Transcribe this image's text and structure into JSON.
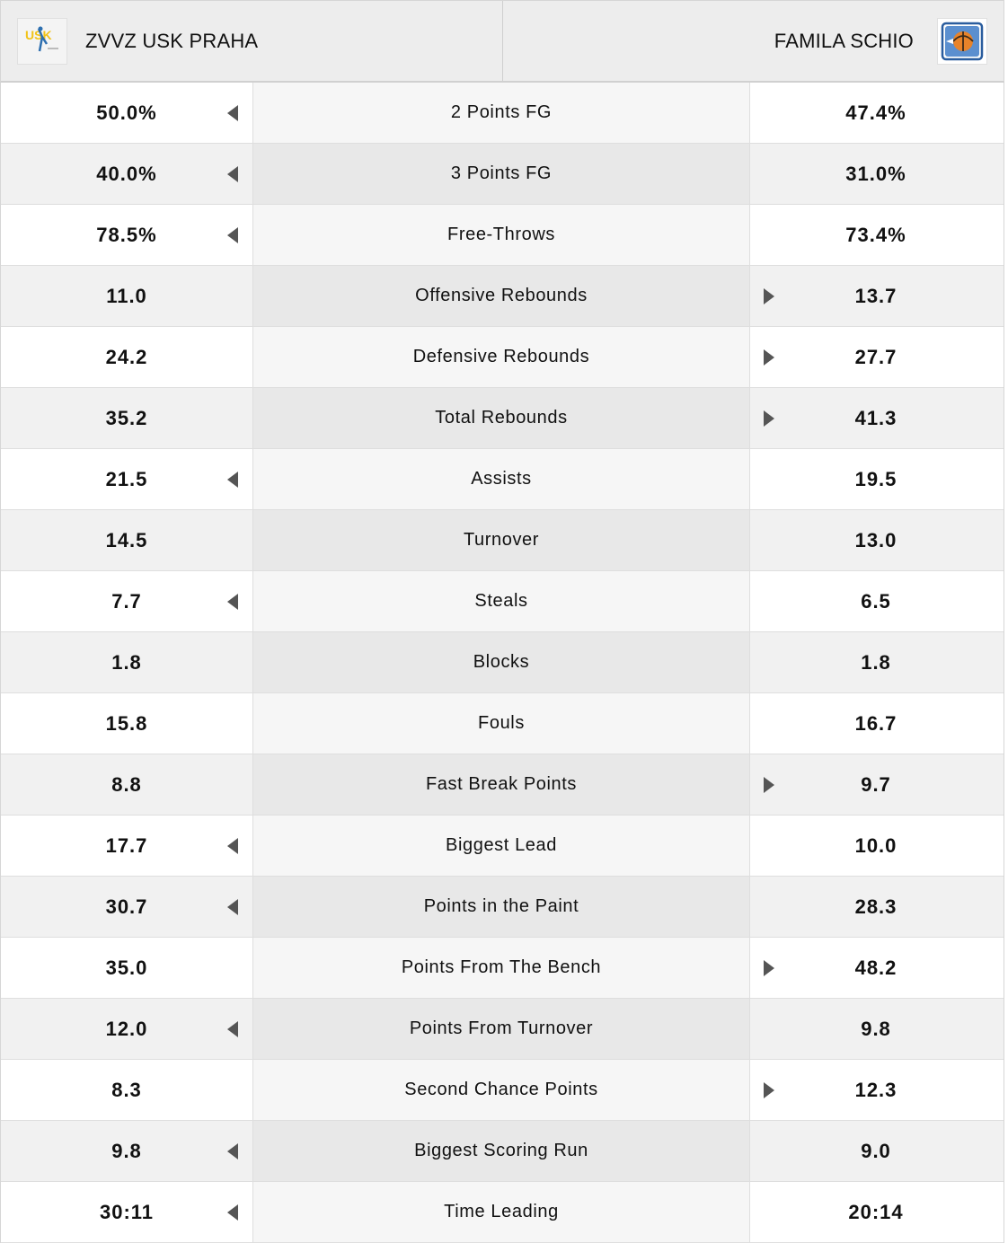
{
  "header": {
    "home_team": "ZVVZ USK PRAHA",
    "away_team": "FAMILA SCHIO",
    "home_logo_text": "USK",
    "colors": {
      "home_logo_yellow": "#f2c318",
      "home_logo_blue": "#2d6fb0",
      "away_logo_blue": "#2a5d9e",
      "away_logo_orange": "#e8832a",
      "arrow": "#555555"
    }
  },
  "stats": [
    {
      "label": "2 Points FG",
      "home": "50.0%",
      "away": "47.4%",
      "leader": "home"
    },
    {
      "label": "3 Points FG",
      "home": "40.0%",
      "away": "31.0%",
      "leader": "home"
    },
    {
      "label": "Free-Throws",
      "home": "78.5%",
      "away": "73.4%",
      "leader": "home"
    },
    {
      "label": "Offensive Rebounds",
      "home": "11.0",
      "away": "13.7",
      "leader": "away"
    },
    {
      "label": "Defensive Rebounds",
      "home": "24.2",
      "away": "27.7",
      "leader": "away"
    },
    {
      "label": "Total Rebounds",
      "home": "35.2",
      "away": "41.3",
      "leader": "away"
    },
    {
      "label": "Assists",
      "home": "21.5",
      "away": "19.5",
      "leader": "home"
    },
    {
      "label": "Turnover",
      "home": "14.5",
      "away": "13.0",
      "leader": "none"
    },
    {
      "label": "Steals",
      "home": "7.7",
      "away": "6.5",
      "leader": "home"
    },
    {
      "label": "Blocks",
      "home": "1.8",
      "away": "1.8",
      "leader": "none"
    },
    {
      "label": "Fouls",
      "home": "15.8",
      "away": "16.7",
      "leader": "none"
    },
    {
      "label": "Fast Break Points",
      "home": "8.8",
      "away": "9.7",
      "leader": "away"
    },
    {
      "label": "Biggest Lead",
      "home": "17.7",
      "away": "10.0",
      "leader": "home"
    },
    {
      "label": "Points in the Paint",
      "home": "30.7",
      "away": "28.3",
      "leader": "home"
    },
    {
      "label": "Points From The Bench",
      "home": "35.0",
      "away": "48.2",
      "leader": "away"
    },
    {
      "label": "Points From Turnover",
      "home": "12.0",
      "away": "9.8",
      "leader": "home"
    },
    {
      "label": "Second Chance Points",
      "home": "8.3",
      "away": "12.3",
      "leader": "away"
    },
    {
      "label": "Biggest Scoring Run",
      "home": "9.8",
      "away": "9.0",
      "leader": "home"
    },
    {
      "label": "Time Leading",
      "home": "30:11",
      "away": "20:14",
      "leader": "home"
    }
  ]
}
